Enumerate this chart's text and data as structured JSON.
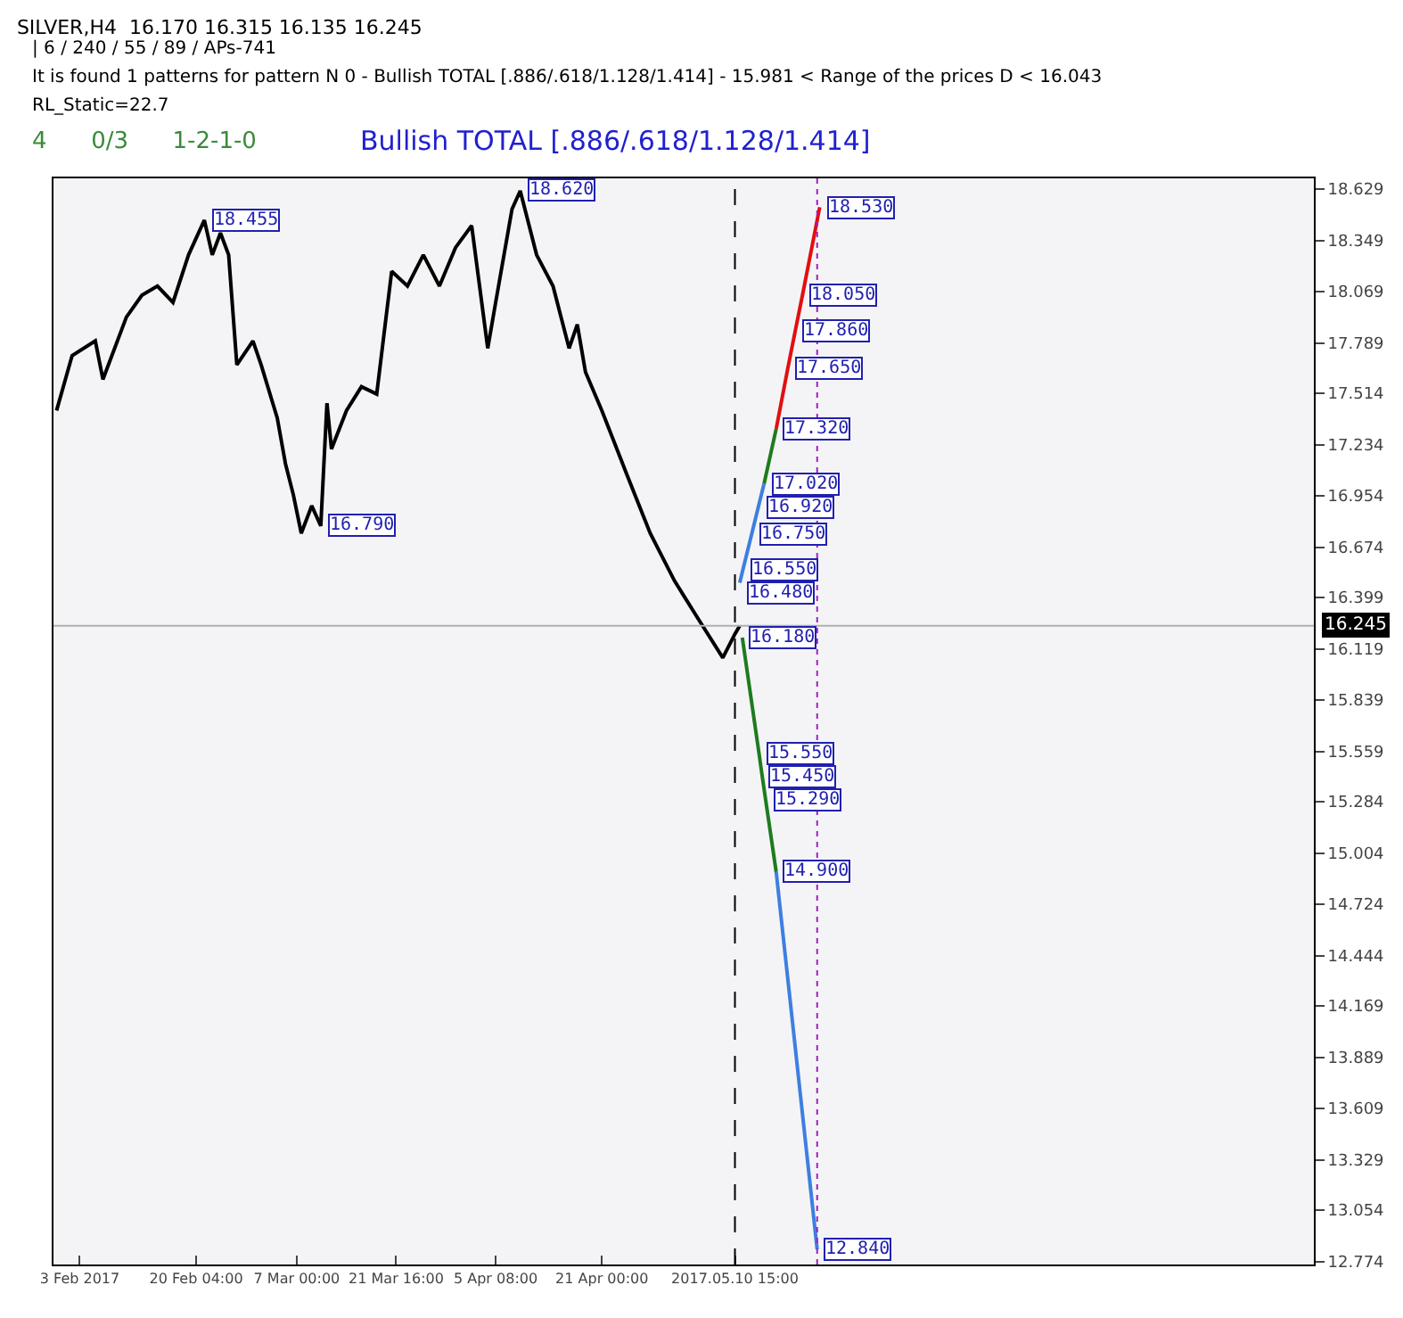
{
  "chart_data": {
    "type": "line",
    "title": "SILVER,H4  16.170 16.315 16.135 16.245",
    "xlim": [
      "2017-01-30T03:00",
      "2017-08-04T00:00"
    ],
    "xticks": [
      {
        "value": "2017-02-03",
        "label": "3 Feb 2017"
      },
      {
        "value": "2017-02-20T04:00",
        "label": "20 Feb 04:00"
      },
      {
        "value": "2017-03-07",
        "label": "7 Mar 00:00"
      },
      {
        "value": "2017-03-21T16:00",
        "label": "21 Mar 16:00"
      },
      {
        "value": "2017-04-05T08:00",
        "label": "5 Apr 08:00"
      },
      {
        "value": "2017-04-21",
        "label": "21 Apr 00:00"
      },
      {
        "value": "2017-05-10T15:00",
        "label": "2017.05.10 15:00"
      }
    ],
    "ylim": [
      12.757,
      18.688
    ],
    "yticks": [
      18.629,
      18.349,
      18.069,
      17.789,
      17.514,
      17.234,
      16.954,
      16.674,
      16.399,
      16.119,
      15.839,
      15.559,
      15.284,
      15.004,
      14.724,
      14.444,
      14.169,
      13.889,
      13.609,
      13.329,
      13.054,
      12.774
    ],
    "grid": false,
    "marker": "none",
    "line_style": "solid",
    "series": [
      {
        "color": "#000000",
        "x": [
          "2017-01-30T14:00",
          "2017-02-01T21:00",
          "2017-02-05T07:00",
          "2017-02-06T10:00",
          "2017-02-09T21:00",
          "2017-02-12T04:00",
          "2017-02-14T11:00",
          "2017-02-16T18:00",
          "2017-02-19T01:00",
          "2017-02-21T09:00",
          "2017-02-22T13:00",
          "2017-02-23T18:00",
          "2017-02-24T23:00",
          "2017-02-26T04:00",
          "2017-02-28T13:00",
          "2017-03-01T18:00",
          "2017-03-04T03:00",
          "2017-03-05T08:00",
          "2017-03-06T12:00",
          "2017-03-07T16:00",
          "2017-03-09T05:00",
          "2017-03-10T13:00",
          "2017-03-11T11:00",
          "2017-03-12T03:00",
          "2017-03-14T08:00",
          "2017-03-16T13:00",
          "2017-03-18T19:00",
          "2017-03-19T21:00",
          "2017-03-21T00:00",
          "2017-03-23T08:00",
          "2017-03-25T16:00",
          "2017-03-28T01:00",
          "2017-03-30T10:00",
          "2017-04-01T19:00",
          "2017-04-04T04:00",
          "2017-04-05T08:00",
          "2017-04-07T18:00",
          "2017-04-08T23:00",
          "2017-04-11T09:00",
          "2017-04-13T19:00",
          "2017-04-16T04:00",
          "2017-04-17T09:00",
          "2017-04-18T14:00",
          "2017-04-21T00:00",
          "2017-04-24T14:00",
          "2017-04-28T03:00",
          "2017-05-01T17:00",
          "2017-05-05T06:00",
          "2017-05-08T20:00",
          "2017-05-10T15:00",
          "2017-05-11T08:00"
        ],
        "values": [
          17.42,
          17.72,
          17.8,
          17.59,
          17.93,
          18.05,
          18.1,
          18.01,
          18.27,
          18.46,
          18.27,
          18.39,
          18.27,
          17.67,
          17.8,
          17.67,
          17.38,
          17.13,
          16.96,
          16.75,
          16.9,
          16.79,
          17.46,
          17.21,
          17.42,
          17.55,
          17.51,
          17.84,
          18.18,
          18.1,
          18.27,
          18.1,
          18.31,
          18.43,
          17.76,
          18.01,
          18.52,
          18.62,
          18.27,
          18.1,
          17.76,
          17.89,
          17.63,
          17.42,
          17.08,
          16.75,
          16.49,
          16.28,
          16.07,
          16.2,
          16.245
        ]
      },
      {
        "color": "#1e7b1e",
        "x": [
          "2017-05-11T17:00",
          "2017-05-14T04:00",
          "2017-05-14T13:00",
          "2017-05-15T04:00",
          "2017-05-16T17:00"
        ],
        "values": [
          16.18,
          15.55,
          15.45,
          15.29,
          14.9
        ]
      },
      {
        "color": "#3d7fe0",
        "x": [
          "2017-05-16T17:00",
          "2017-05-22T18:00"
        ],
        "values": [
          14.9,
          12.84
        ]
      },
      {
        "color": "#3d7fe0",
        "x": [
          "2017-05-11T08:00",
          "2017-05-11T19:00",
          "2017-05-13T03:00",
          "2017-05-14T06:00",
          "2017-05-14T22:00"
        ],
        "values": [
          16.48,
          16.55,
          16.75,
          16.92,
          17.02
        ]
      },
      {
        "color": "#1e7b1e",
        "x": [
          "2017-05-14T22:00",
          "2017-05-16T17:00"
        ],
        "values": [
          17.02,
          17.32
        ]
      },
      {
        "color": "#e01010",
        "x": [
          "2017-05-16T17:00",
          "2017-05-18T10:00",
          "2017-05-19T13:00",
          "2017-05-20T14:00",
          "2017-05-23T03:00"
        ],
        "values": [
          17.32,
          17.65,
          17.86,
          18.05,
          18.53
        ]
      }
    ],
    "ref_lines": [
      {
        "axis": "x",
        "value": "2017-05-10T15:00",
        "color": "#000000",
        "line_style": "dashed"
      },
      {
        "axis": "x",
        "value": "2017-05-22T18:00",
        "color": "#a020c0",
        "line_style": "dotted"
      },
      {
        "axis": "y",
        "value": 16.245,
        "label": "16.245",
        "color": "#b0b0b0",
        "line_style": "solid"
      }
    ],
    "annotations": [
      "| 6 / 240 / 55 / 89 / APs-741",
      "It is found 1 patterns for pattern N 0 - Bullish TOTAL [.886/.618/1.128/1.414] - 15.981 < Range of the prices D < 16.043",
      "RL_Static=22.7",
      "4      0/3      1-2-1-0",
      "Bullish TOTAL [.886/.618/1.128/1.414]",
      {
        "text": "18.455",
        "x": "2017-02-21T09:00",
        "y": 18.455
      },
      {
        "text": "18.620",
        "x": "2017-04-08T23:00",
        "y": 18.62
      },
      {
        "text": "16.790",
        "x": "2017-03-10T13:00",
        "y": 16.79
      },
      {
        "text": "18.530",
        "x": "2017-05-23T03:00",
        "y": 18.53
      },
      {
        "text": "18.050",
        "x": "2017-05-20T14:00",
        "y": 18.05
      },
      {
        "text": "17.860",
        "x": "2017-05-19T13:00",
        "y": 17.86
      },
      {
        "text": "17.650",
        "x": "2017-05-18T10:00",
        "y": 17.65
      },
      {
        "text": "17.320",
        "x": "2017-05-16T17:00",
        "y": 17.32
      },
      {
        "text": "17.020",
        "x": "2017-05-14T22:00",
        "y": 17.02
      },
      {
        "text": "16.920",
        "x": "2017-05-14T06:00",
        "y": 16.92
      },
      {
        "text": "16.750",
        "x": "2017-05-13T03:00",
        "y": 16.75
      },
      {
        "text": "16.550",
        "x": "2017-05-11T19:00",
        "y": 16.55
      },
      {
        "text": "16.480",
        "x": "2017-05-11T08:00",
        "y": 16.48
      },
      {
        "text": "16.180",
        "x": "2017-05-11T17:00",
        "y": 16.18
      },
      {
        "text": "15.550",
        "x": "2017-05-14T04:00",
        "y": 15.55
      },
      {
        "text": "15.450",
        "x": "2017-05-14T13:00",
        "y": 15.45
      },
      {
        "text": "15.290",
        "x": "2017-05-15T04:00",
        "y": 15.29
      },
      {
        "text": "14.900",
        "x": "2017-05-16T17:00",
        "y": 14.9
      },
      {
        "text": "12.840",
        "x": "2017-05-22T18:00",
        "y": 12.84
      }
    ]
  }
}
